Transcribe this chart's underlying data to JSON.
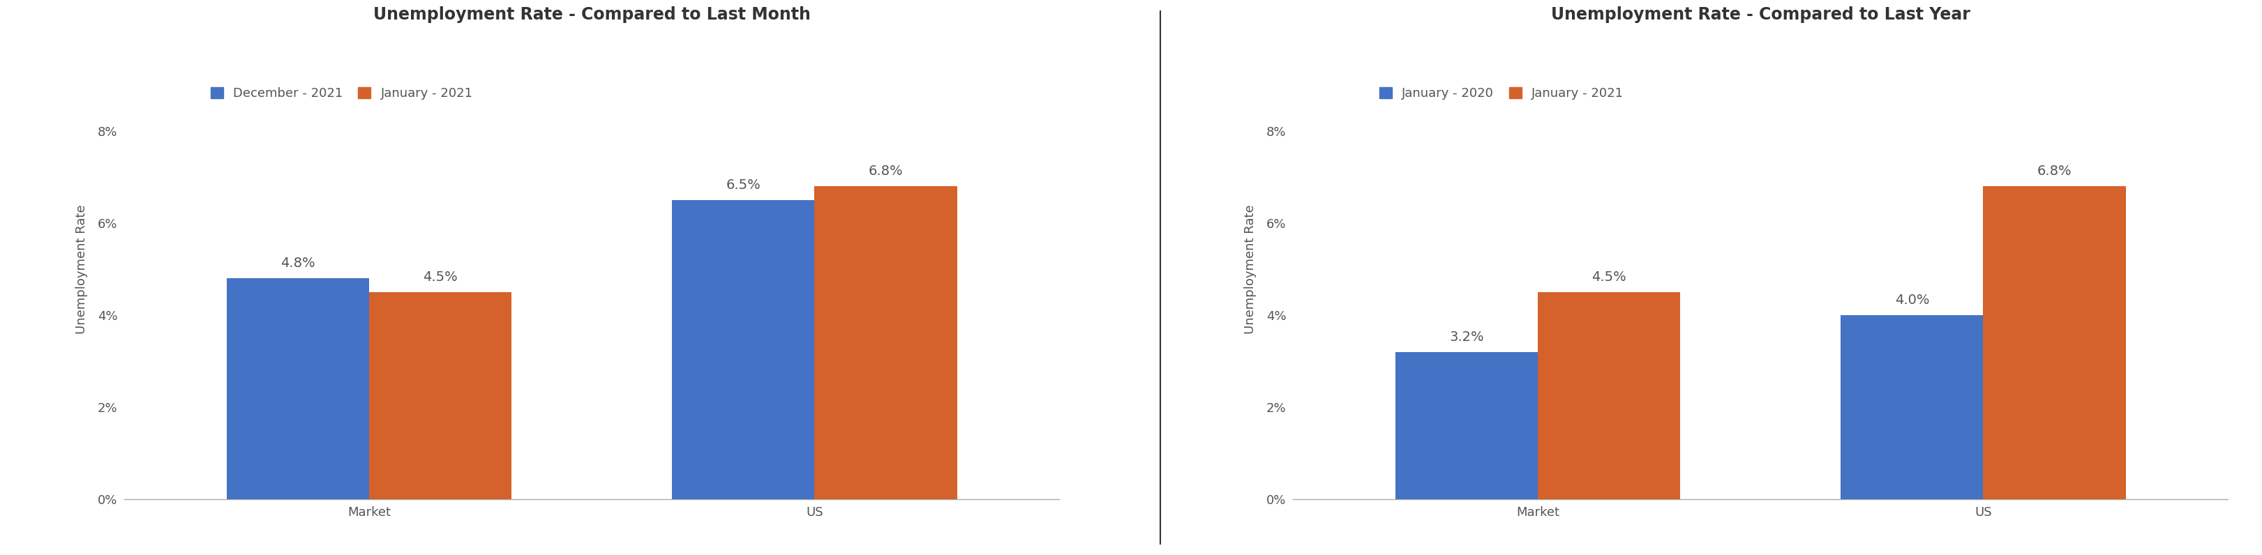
{
  "chart1": {
    "title": "Unemployment Rate - Compared to Last Month",
    "legend_labels": [
      "December - 2021",
      "January - 2021"
    ],
    "categories": [
      "Market",
      "US"
    ],
    "series1_values": [
      4.8,
      6.5
    ],
    "series2_values": [
      4.5,
      6.8
    ],
    "series1_labels": [
      "4.8%",
      "6.5%"
    ],
    "series2_labels": [
      "4.5%",
      "6.8%"
    ],
    "ylabel": "Unemployment Rate",
    "ylim": [
      0,
      10
    ],
    "yticks": [
      0,
      2,
      4,
      6,
      8
    ],
    "yticklabels": [
      "0%",
      "2%",
      "4%",
      "6%",
      "8%"
    ]
  },
  "chart2": {
    "title": "Unemployment Rate - Compared to Last Year",
    "legend_labels": [
      "January - 2020",
      "January - 2021"
    ],
    "categories": [
      "Market",
      "US"
    ],
    "series1_values": [
      3.2,
      4.0
    ],
    "series2_values": [
      4.5,
      6.8
    ],
    "series1_labels": [
      "3.2%",
      "4.0%"
    ],
    "series2_labels": [
      "4.5%",
      "6.8%"
    ],
    "ylabel": "Unemployment Rate",
    "ylim": [
      0,
      10
    ],
    "yticks": [
      0,
      2,
      4,
      6,
      8
    ],
    "yticklabels": [
      "0%",
      "2%",
      "4%",
      "6%",
      "8%"
    ]
  },
  "bar_color_blue": "#4472C4",
  "bar_color_orange": "#D4622A",
  "bar_width": 0.32,
  "label_fontsize": 14,
  "title_fontsize": 17,
  "legend_fontsize": 13,
  "ylabel_fontsize": 13,
  "tick_fontsize": 13,
  "category_fontsize": 13,
  "background_color": "#FFFFFF",
  "annotation_color": "#555555",
  "spine_color": "#AAAAAA",
  "text_color": "#555555"
}
